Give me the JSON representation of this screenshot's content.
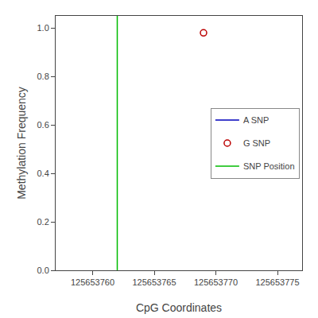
{
  "chart_data": {
    "type": "scatter",
    "xlabel": "CpG Coordinates",
    "ylabel": "Methylation Frequency",
    "xlim": [
      125653757,
      125653777
    ],
    "ylim": [
      0.0,
      1.05
    ],
    "xticks": [
      125653760,
      125653765,
      125653770,
      125653775
    ],
    "yticks": [
      {
        "value": 0.0,
        "label": "0.0"
      },
      0.2,
      0.4,
      0.6,
      0.8,
      {
        "value": 1.0,
        "label": "1.0"
      }
    ],
    "grid": false,
    "legend": "right",
    "series": [
      {
        "name": "A SNP",
        "color": "#0000bb",
        "marker": "open circle",
        "x": [],
        "values": []
      },
      {
        "name": "G SNP",
        "color": "#bb0000",
        "marker": "open circle",
        "x": [
          125653769
        ],
        "values": [
          0.98
        ]
      },
      {
        "name": "SNP Position",
        "color": "#00bb00",
        "type": "vline",
        "x": [
          125653762
        ]
      }
    ]
  }
}
